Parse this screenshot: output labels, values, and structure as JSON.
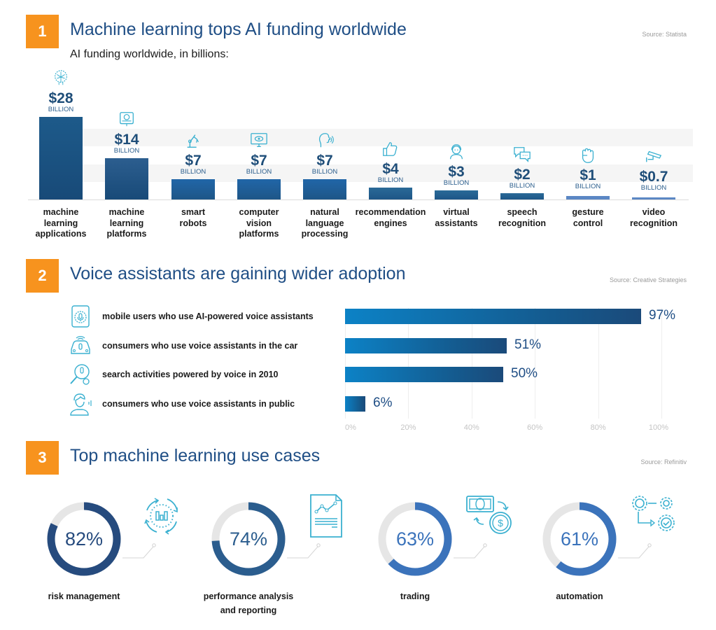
{
  "section1": {
    "number": "1",
    "title": "Machine learning tops AI funding worldwide",
    "source": "Source: Statista",
    "subtitle": "AI funding worldwide, in billions:",
    "unit_label": "BILLION",
    "items": [
      {
        "label_lines": [
          "machine",
          "learning",
          "applications"
        ],
        "value": "$28",
        "icon": "brain-network-icon",
        "color": "#1d5a8a"
      },
      {
        "label_lines": [
          "machine",
          "learning",
          "platforms"
        ],
        "value": "$14",
        "icon": "chip-book-icon",
        "color": "#2c5e8f"
      },
      {
        "label_lines": [
          "smart",
          "robots",
          ""
        ],
        "value": "$7",
        "icon": "robot-arm-icon",
        "color": "#2166a8"
      },
      {
        "label_lines": [
          "computer",
          "vision",
          "platforms"
        ],
        "value": "$7",
        "icon": "monitor-eye-icon",
        "color": "#2166a8"
      },
      {
        "label_lines": [
          "natural",
          "language",
          "processing"
        ],
        "value": "$7",
        "icon": "speaking-head-icon",
        "color": "#2166a8"
      },
      {
        "label_lines": [
          "recommendation",
          "engines",
          ""
        ],
        "value": "$4",
        "icon": "thumbs-up-icon",
        "color": "#2a6a98"
      },
      {
        "label_lines": [
          "virtual",
          "assistants",
          ""
        ],
        "value": "$3",
        "icon": "assistant-headset-icon",
        "color": "#2a6a98"
      },
      {
        "label_lines": [
          "speech",
          "recognition",
          ""
        ],
        "value": "$2",
        "icon": "chat-bubbles-icon",
        "color": "#2a6a98"
      },
      {
        "label_lines": [
          "gesture",
          "control",
          ""
        ],
        "value": "$1",
        "icon": "fist-icon",
        "color": "#5b87c4"
      },
      {
        "label_lines": [
          "video",
          "recognition",
          ""
        ],
        "value": "$0.7",
        "icon": "security-camera-icon",
        "color": "#5b87c4"
      }
    ]
  },
  "section2": {
    "number": "2",
    "title": "Voice assistants are gaining wider adoption",
    "source": "Source: Creative Strategies",
    "rows": [
      {
        "label": "mobile users who use AI-powered voice assistants",
        "value": "97%",
        "icon": "phone-microphone-icon"
      },
      {
        "label": "consumers who use voice assistants in the car",
        "value": "51%",
        "icon": "car-microphone-icon"
      },
      {
        "label": "search activities powered by voice in 2010",
        "value": "50%",
        "icon": "magnifier-microphone-icon"
      },
      {
        "label": "consumers who use voice assistants in public",
        "value": "6%",
        "icon": "person-speaking-icon"
      }
    ],
    "ticks": [
      "0%",
      "20%",
      "40%",
      "60%",
      "80%",
      "100%"
    ]
  },
  "section3": {
    "number": "3",
    "title": "Top machine learning use cases",
    "source": "Source: Refinitiv",
    "items": [
      {
        "value": "82%",
        "label_lines": [
          "risk management",
          ""
        ],
        "icon": "cycle-chart-icon",
        "color": "#264b7e"
      },
      {
        "value": "74%",
        "label_lines": [
          "performance analysis",
          "and reporting"
        ],
        "icon": "report-document-icon",
        "color": "#2b5d8e"
      },
      {
        "value": "63%",
        "label_lines": [
          "trading",
          ""
        ],
        "icon": "money-exchange-icon",
        "color": "#3b73bb"
      },
      {
        "value": "61%",
        "label_lines": [
          "automation",
          ""
        ],
        "icon": "gears-process-icon",
        "color": "#3b73bb"
      }
    ]
  },
  "colors": {
    "badge": "#f7931e",
    "title": "#1f4e85",
    "icon": "#3ab0d0",
    "track": "#e6e6e6"
  },
  "chart_data": [
    {
      "type": "bar",
      "title": "AI funding worldwide, in billions",
      "categories": [
        "machine learning applications",
        "machine learning platforms",
        "smart robots",
        "computer vision platforms",
        "natural language processing",
        "recommendation engines",
        "virtual assistants",
        "speech recognition",
        "gesture control",
        "video recognition"
      ],
      "values": [
        28,
        14,
        7,
        7,
        7,
        4,
        3,
        2,
        1,
        0.7
      ],
      "xlabel": "",
      "ylabel": "Billion USD",
      "source": "Statista"
    },
    {
      "type": "bar",
      "orientation": "horizontal",
      "title": "Voice assistants are gaining wider adoption",
      "categories": [
        "mobile users who use AI-powered voice assistants",
        "consumers who use voice assistants in the car",
        "search activities powered by voice in 2010",
        "consumers who use voice assistants in public"
      ],
      "values": [
        97,
        51,
        50,
        6
      ],
      "xlim": [
        0,
        100
      ],
      "xticks": [
        "0%",
        "20%",
        "40%",
        "60%",
        "80%",
        "100%"
      ],
      "grid": true,
      "source": "Creative Strategies"
    },
    {
      "type": "pie",
      "subtype": "donut",
      "title": "Top machine learning use cases",
      "categories": [
        "risk management",
        "performance analysis and reporting",
        "trading",
        "automation"
      ],
      "values": [
        82,
        74,
        63,
        61
      ],
      "source": "Refinitiv"
    }
  ]
}
